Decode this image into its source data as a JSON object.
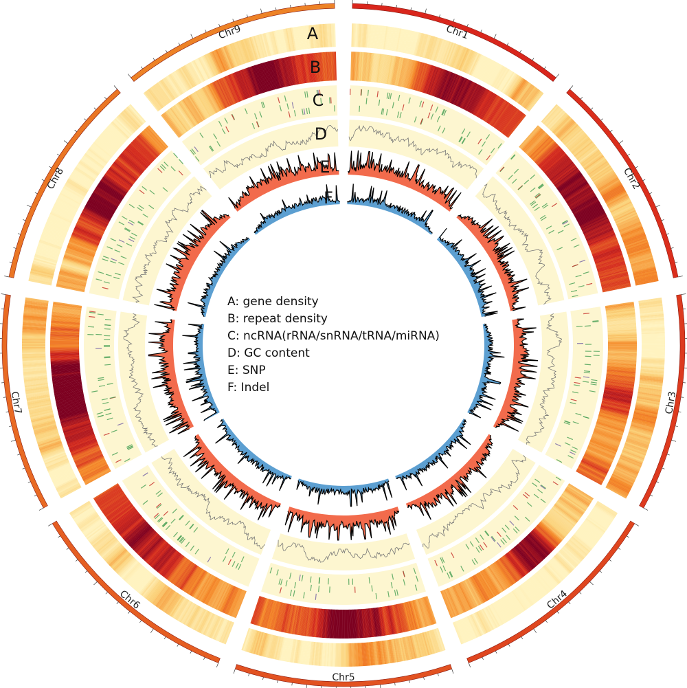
{
  "chromosomes": [
    {
      "name": "Chr1",
      "color": "#d9261c"
    },
    {
      "name": "Chr2",
      "color": "#db2e1c"
    },
    {
      "name": "Chr3",
      "color": "#dd3a1e"
    },
    {
      "name": "Chr4",
      "color": "#df461f"
    },
    {
      "name": "Chr5",
      "color": "#e25221"
    },
    {
      "name": "Chr6",
      "color": "#e55e22"
    },
    {
      "name": "Chr7",
      "color": "#e86a23"
    },
    {
      "name": "Chr8",
      "color": "#ea7624"
    },
    {
      "name": "Chr9",
      "color": "#ed8226"
    }
  ],
  "tracks": [
    {
      "letter": "A",
      "description": "gene density",
      "type": "heatmap"
    },
    {
      "letter": "B",
      "description": "repeat density",
      "type": "heatmap"
    },
    {
      "letter": "C",
      "description": "ncRNA(rRNA/snRNA/tRNA/miRNA)",
      "type": "tiles"
    },
    {
      "letter": "D",
      "description": "GC content",
      "type": "line"
    },
    {
      "letter": "E",
      "description": "SNP",
      "type": "histogram"
    },
    {
      "letter": "F",
      "description": "Indel",
      "type": "histogram"
    }
  ],
  "legend": [
    "A: gene density",
    "B: repeat density",
    "C: ncRNA(rRNA/snRNA/tRNA/miRNA)",
    "D: GC content",
    "E: SNP",
    "F: Indel"
  ],
  "colors": {
    "heat_low": "#fff3c0",
    "heat_mid": "#f58a2a",
    "heat_high": "#7d0020",
    "panel_bg": "#fdf6d0",
    "ncrna_green": "#4fa35a",
    "ncrna_red": "#c8342e",
    "ncrna_purple": "#7b6aa8",
    "gc_line": "#777777",
    "snp_fill": "#f26b4c",
    "indel_fill": "#5c9fd1",
    "outline": "#000000"
  }
}
